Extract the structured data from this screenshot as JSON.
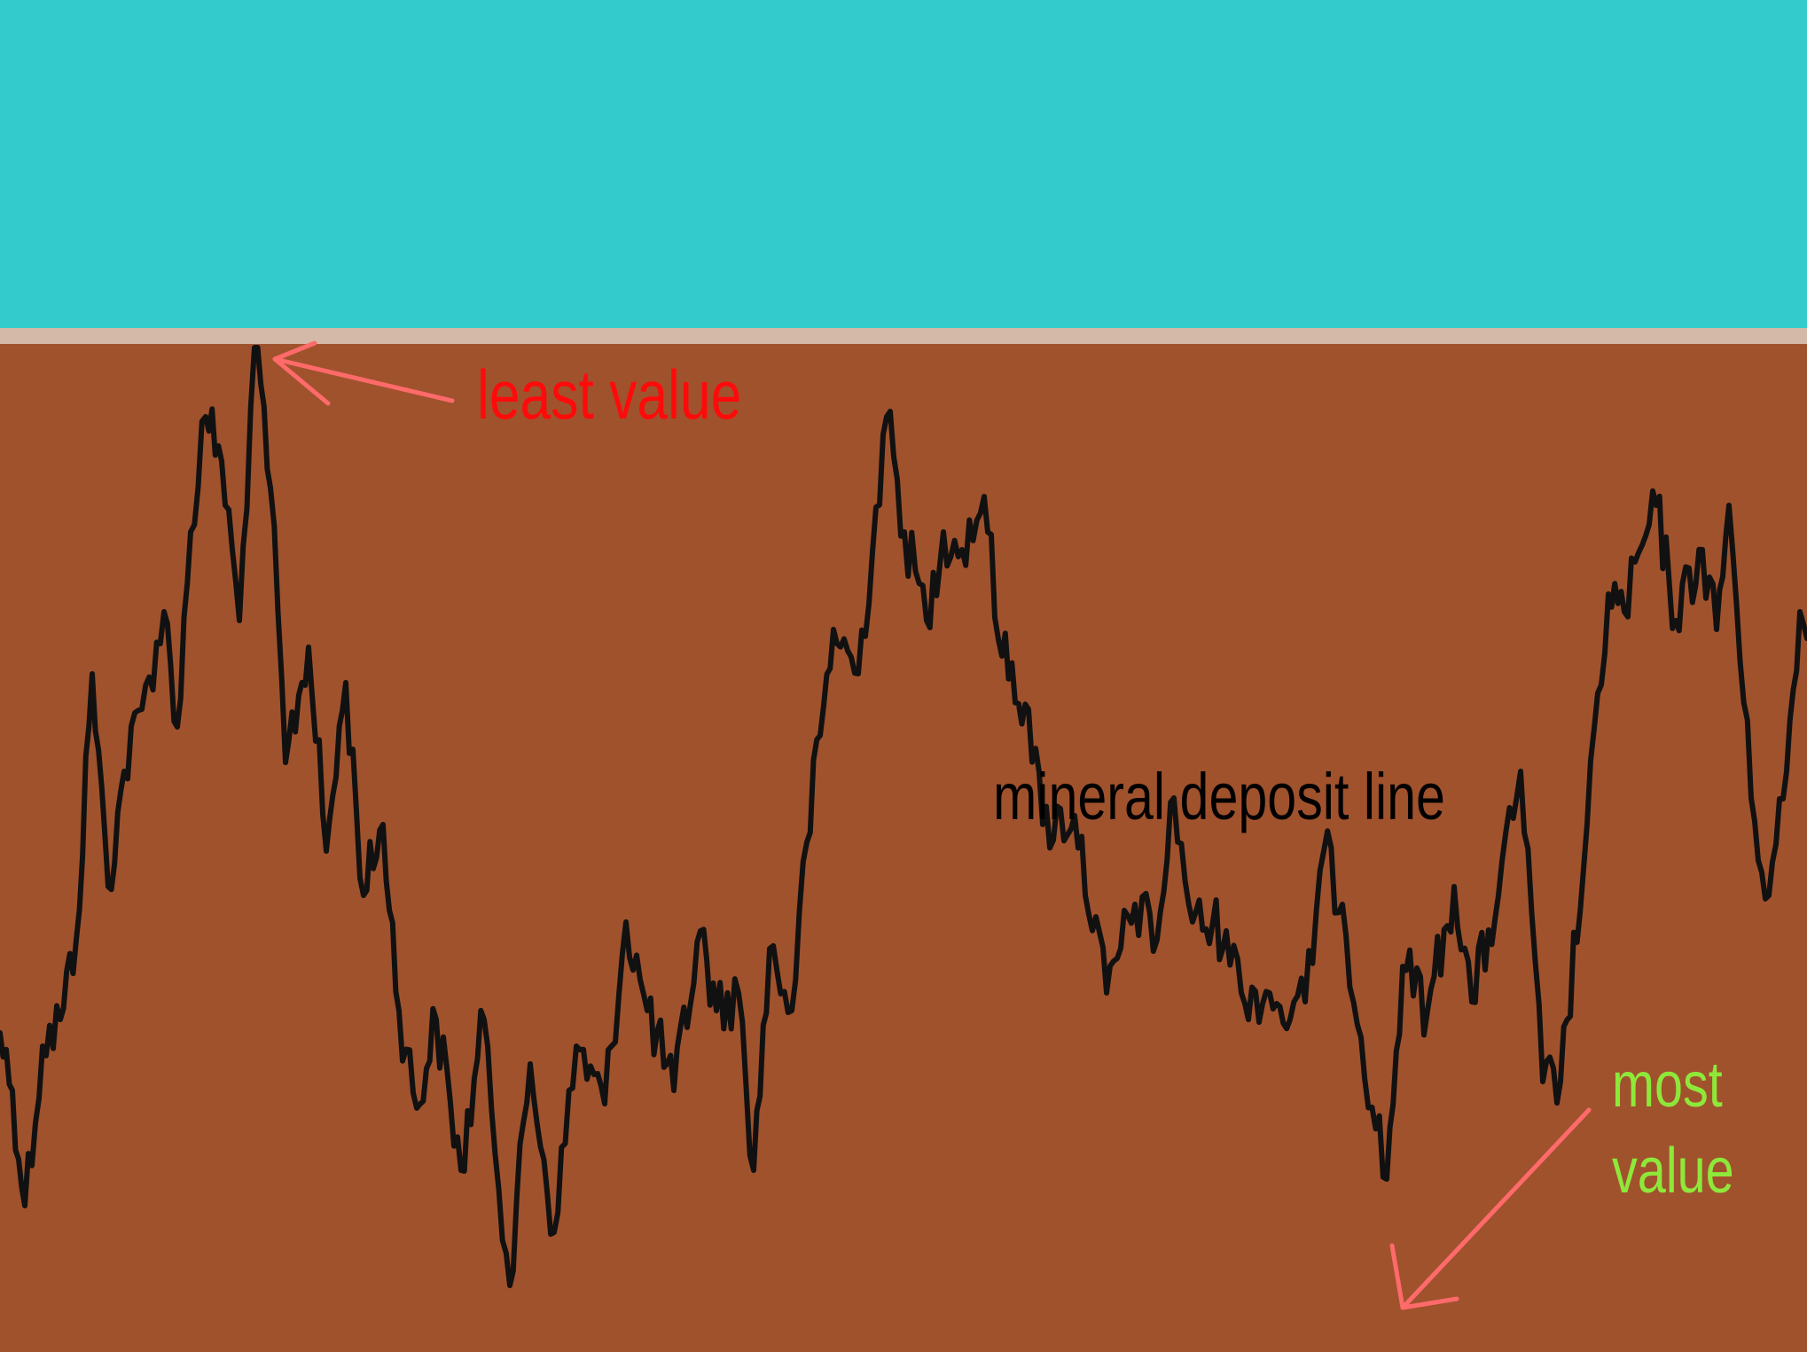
{
  "labels": {
    "least": "least value",
    "deposit": "mineral deposit line",
    "most_line1": "most",
    "most_line2": "value"
  },
  "colors": {
    "sky": "#33cbcb",
    "surface_strip": "#d4b9a8",
    "ground": "#a0522d",
    "deposit_line": "#111111",
    "least_text": "#ff0a0a",
    "most_text": "#8ee83a",
    "arrow": "#ff6a6a"
  }
}
